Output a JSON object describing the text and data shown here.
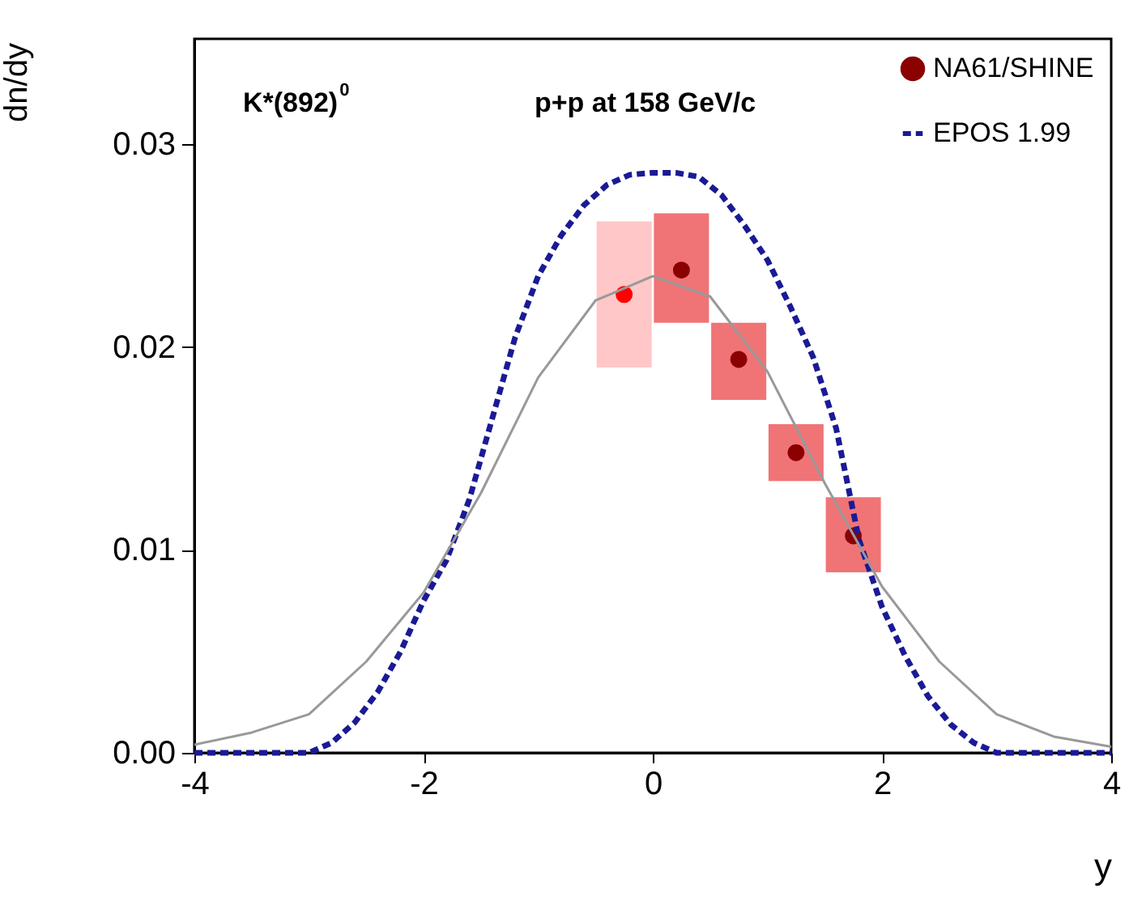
{
  "chart_data": {
    "type": "scatter",
    "xlabel": "y",
    "ylabel": "dn/dy",
    "annotations": [
      "K*(892)$^{0}$",
      "p+p at 158 GeV/c"
    ],
    "xlim": [
      -4,
      4
    ],
    "ylim": [
      0,
      0.0352
    ],
    "xticks": [
      -4,
      -2,
      0,
      2,
      4
    ],
    "yticks": [
      {
        "value": 0,
        "label": "0.00"
      },
      0.01,
      0.02,
      0.03
    ],
    "grid": false,
    "legend": "top right",
    "series": [
      {
        "name": "NA61/SHINE",
        "marker": "circle",
        "color": "#8b0000",
        "x": [
          0.25,
          0.75,
          1.25,
          1.75
        ],
        "values": [
          0.0238,
          0.0194,
          0.0148,
          0.0107
        ],
        "errors": [
          [
            0.0212,
            0.0266
          ],
          [
            0.0174,
            0.0212
          ],
          [
            0.0134,
            0.0162
          ],
          [
            0.0089,
            0.0126
          ]
        ]
      },
      {
        "marker": "circle",
        "color": "#ff0000",
        "x": [
          -0.25
        ],
        "values": [
          0.0226
        ],
        "errors": [
          [
            0.019,
            0.0262
          ]
        ]
      },
      {
        "name": "EPOS 1.99",
        "type": "line",
        "marker": "none",
        "line_style": "dashed",
        "color": "#1a1a96",
        "x": [
          -4,
          -3,
          -2.8,
          -2.6,
          -2.4,
          -2.2,
          -2.0,
          -1.8,
          -1.6,
          -1.4,
          -1.2,
          -1.0,
          -0.8,
          -0.6,
          -0.4,
          -0.2,
          0,
          0.2,
          0.4,
          0.6,
          0.8,
          1.0,
          1.2,
          1.4,
          1.6,
          1.8,
          2.0,
          2.2,
          2.4,
          2.6,
          2.8,
          3.0,
          4
        ],
        "values": [
          0,
          0,
          0.0005,
          0.0015,
          0.003,
          0.005,
          0.0075,
          0.0095,
          0.0125,
          0.0165,
          0.0205,
          0.0235,
          0.0255,
          0.027,
          0.028,
          0.0285,
          0.0286,
          0.0286,
          0.0284,
          0.0275,
          0.026,
          0.0243,
          0.022,
          0.0195,
          0.016,
          0.0105,
          0.0072,
          0.0048,
          0.0028,
          0.0014,
          0.0005,
          0,
          0
        ]
      },
      {
        "type": "line",
        "marker": "none",
        "line_style": "solid",
        "color": "#999999",
        "x": [
          -4,
          -3.5,
          -3,
          -2.5,
          -2,
          -1.5,
          -1,
          -0.5,
          0,
          0.5,
          1,
          1.5,
          2,
          2.5,
          3,
          3.5,
          4
        ],
        "values": [
          0.0004,
          0.001,
          0.0019,
          0.0045,
          0.0079,
          0.0128,
          0.0185,
          0.0223,
          0.0235,
          0.0225,
          0.0188,
          0.0133,
          0.0082,
          0.0045,
          0.0019,
          0.0008,
          0.0003
        ]
      }
    ]
  }
}
